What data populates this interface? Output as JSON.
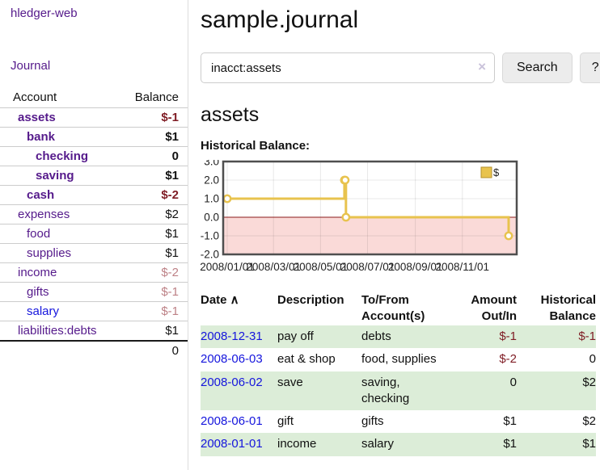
{
  "palette": {
    "purple": "#551a8b",
    "blue": "#1515dd",
    "neg-dark": "#7f1c24",
    "neg-light": "#bd8186",
    "rowgreen": "#dcedd8",
    "btnbg": "#ececec",
    "btnborder": "#d9d9d9",
    "clearx": "#c9c2da"
  },
  "app": {
    "title": "hledger-web"
  },
  "sidebar": {
    "nav_journal": "Journal",
    "accounts": {
      "headers": {
        "account": "Account",
        "balance": "Balance"
      },
      "rows": [
        {
          "account": "assets",
          "balance": "$-1",
          "depth": 1,
          "bold": true,
          "neg": "dark"
        },
        {
          "account": "bank",
          "balance": "$1",
          "depth": 2,
          "bold": true
        },
        {
          "account": "checking",
          "balance": "0",
          "depth": 3,
          "bold": true
        },
        {
          "account": "saving",
          "balance": "$1",
          "depth": 3,
          "bold": true
        },
        {
          "account": "cash",
          "balance": "$-2",
          "depth": 2,
          "bold": true,
          "neg": "dark"
        },
        {
          "account": "expenses",
          "balance": "$2",
          "depth": 1
        },
        {
          "account": "food",
          "balance": "$1",
          "depth": 2
        },
        {
          "account": "supplies",
          "balance": "$1",
          "depth": 2
        },
        {
          "account": "income",
          "balance": "$-2",
          "depth": 1,
          "neg": "light"
        },
        {
          "account": "gifts",
          "balance": "$-1",
          "depth": 2,
          "neg": "light"
        },
        {
          "account": "salary",
          "balance": "$-1",
          "depth": 2,
          "neg": "light",
          "blue": true
        },
        {
          "account": "liabilities:debts",
          "balance": "$1",
          "depth": 1
        }
      ],
      "total": "0"
    }
  },
  "main": {
    "title": "sample.journal",
    "search": {
      "value": "inacct:assets",
      "clear": "×",
      "button": "Search",
      "help": "?"
    },
    "heading": "assets",
    "chart_label": "Historical Balance:"
  },
  "chart_data": {
    "type": "line",
    "title": "Historical Balance:",
    "step": true,
    "series": [
      {
        "name": "$",
        "points": [
          [
            "2008-01-01",
            1
          ],
          [
            "2008-06-01",
            2
          ],
          [
            "2008-06-02",
            2
          ],
          [
            "2008-06-03",
            0
          ],
          [
            "2008-12-31",
            -1
          ]
        ]
      }
    ],
    "ylim": [
      -2.0,
      3.0
    ],
    "yticks": [
      "3.0",
      "2.0",
      "1.0",
      "0.0",
      "-1.0",
      "-2.0"
    ],
    "xticks": [
      "2008/01/01",
      "2008/03/01",
      "2008/05/01",
      "2008/07/01",
      "2008/09/01",
      "2008/11/01"
    ],
    "legend": {
      "position": "top-right",
      "entries": [
        "$"
      ]
    },
    "grid": true,
    "colors": {
      "line": "#e8c34e",
      "negative_region": "#fadad8",
      "zero_line": "#8b1a1a",
      "border": "#4f4f4f",
      "grid": "#00000017",
      "legend_border": "#b5922e"
    }
  },
  "register": {
    "columns": [
      {
        "key": "date",
        "lines": [
          "Date"
        ],
        "align": "left",
        "sort_icon": "∧"
      },
      {
        "key": "description",
        "lines": [
          "Description"
        ],
        "align": "left"
      },
      {
        "key": "accounts",
        "lines": [
          "To/From",
          "Account(s)"
        ],
        "align": "left"
      },
      {
        "key": "amount",
        "lines": [
          "Amount",
          "Out/In"
        ],
        "align": "right"
      },
      {
        "key": "balance",
        "lines": [
          "Historical",
          "Balance"
        ],
        "align": "right"
      }
    ],
    "rows": [
      {
        "date": "2008-12-31",
        "description": "pay off",
        "accounts": "debts",
        "amount": "$-1",
        "amount_neg": true,
        "balance": "$-1",
        "balance_neg": true,
        "shaded": true
      },
      {
        "date": "2008-06-03",
        "description": "eat & shop",
        "accounts": "food, supplies",
        "amount": "$-2",
        "amount_neg": true,
        "balance": "0",
        "shaded": false
      },
      {
        "date": "2008-06-02",
        "description": "save",
        "accounts": "saving, checking",
        "amount": "0",
        "balance": "$2",
        "shaded": true
      },
      {
        "date": "2008-06-01",
        "description": "gift",
        "accounts": "gifts",
        "amount": "$1",
        "balance": "$2",
        "shaded": false
      },
      {
        "date": "2008-01-01",
        "description": "income",
        "accounts": "salary",
        "amount": "$1",
        "balance": "$1",
        "shaded": true
      }
    ]
  }
}
